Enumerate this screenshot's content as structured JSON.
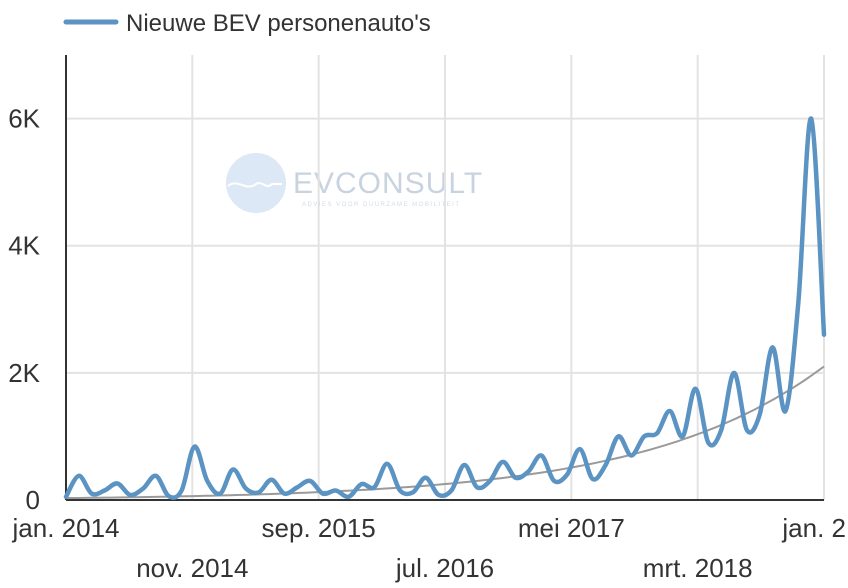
{
  "watermark": {
    "brand": "EVCONSULT",
    "tagline": "ADVIES VOOR DUURZAME MOBILITEIT"
  },
  "colors": {
    "series": "#5b93c3",
    "trend": "#9a9a9a",
    "grid": "#e3e3e3",
    "axis": "#333333",
    "watermark": "#dce8f5"
  },
  "chart_data": {
    "type": "line",
    "legend_position": "top-left",
    "grid": true,
    "series": [
      {
        "name": "Nieuwe BEV personenauto's",
        "x_start": "2014-01",
        "values": [
          50,
          380,
          100,
          150,
          260,
          80,
          180,
          380,
          60,
          150,
          840,
          300,
          100,
          480,
          180,
          120,
          320,
          100,
          200,
          300,
          100,
          150,
          50,
          250,
          200,
          570,
          150,
          120,
          350,
          80,
          150,
          550,
          200,
          300,
          600,
          350,
          450,
          700,
          300,
          400,
          800,
          330,
          550,
          1000,
          700,
          1000,
          1050,
          1400,
          1000,
          1750,
          900,
          1100,
          2000,
          1100,
          1350,
          2400,
          1400,
          3100,
          6000,
          2600
        ]
      }
    ],
    "trendline": {
      "type": "exponential",
      "values_at_ends": [
        30,
        2100
      ]
    },
    "x_ticks_top": [
      "jan. 2014",
      "sep. 2015",
      "mei 2017",
      "jan. 2"
    ],
    "x_ticks_bottom": [
      "nov. 2014",
      "jul. 2016",
      "mrt. 2018"
    ],
    "x_tick_month_index": [
      0,
      10,
      20,
      30,
      40,
      50,
      60
    ],
    "y_ticks": [
      "0",
      "2K",
      "4K",
      "6K"
    ],
    "y_tick_values": [
      0,
      2000,
      4000,
      6000
    ],
    "ylim": [
      0,
      7000
    ],
    "xlim_months": [
      0,
      60
    ]
  }
}
